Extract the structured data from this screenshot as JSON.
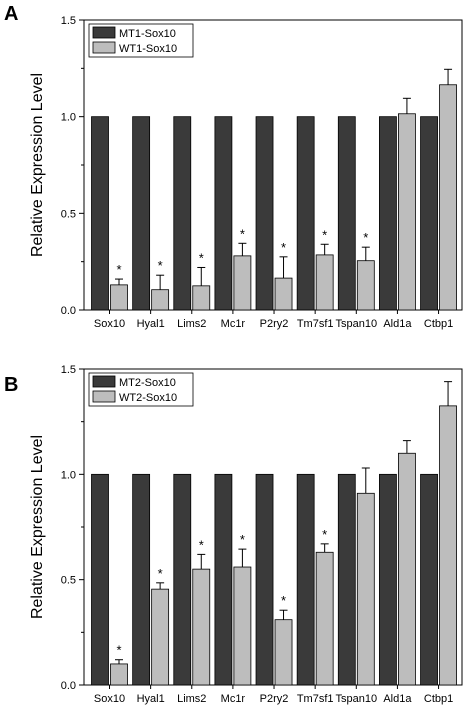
{
  "chart_data": [
    {
      "panel_label": "A",
      "type": "bar",
      "categories": [
        "Sox10",
        "Hyal1",
        "Lims2",
        "Mc1r",
        "P2ry2",
        "Tm7sf1",
        "Tspan10",
        "Ald1a",
        "Ctbp1"
      ],
      "ylabel": "Relative Expression Level",
      "ylim": [
        0,
        1.5
      ],
      "yticks": [
        "0.0",
        "0.5",
        "1.0",
        "1.5"
      ],
      "legend_position": "top-left",
      "series": [
        {
          "name": "MT1-Sox10",
          "color": "#3a3a3a",
          "values": [
            1.0,
            1.0,
            1.0,
            1.0,
            1.0,
            1.0,
            1.0,
            1.0,
            1.0
          ],
          "errors": [
            0,
            0,
            0,
            0,
            0,
            0,
            0,
            0,
            0
          ]
        },
        {
          "name": "WT1-Sox10",
          "color": "#bdbdbd",
          "values": [
            0.13,
            0.105,
            0.125,
            0.28,
            0.165,
            0.285,
            0.255,
            1.015,
            1.165
          ],
          "errors": [
            0.03,
            0.075,
            0.095,
            0.065,
            0.11,
            0.055,
            0.07,
            0.08,
            0.08
          ]
        }
      ],
      "significance": [
        "*",
        "*",
        "*",
        "*",
        "*",
        "*",
        "*",
        "",
        ""
      ]
    },
    {
      "panel_label": "B",
      "type": "bar",
      "categories": [
        "Sox10",
        "Hyal1",
        "Lims2",
        "Mc1r",
        "P2ry2",
        "Tm7sf1",
        "Tspan10",
        "Ald1a",
        "Ctbp1"
      ],
      "ylabel": "Relative Expression Level",
      "ylim": [
        0,
        1.5
      ],
      "yticks": [
        "0.0",
        "0.5",
        "1.0",
        "1.5"
      ],
      "legend_position": "top-left",
      "series": [
        {
          "name": "MT2-Sox10",
          "color": "#3a3a3a",
          "values": [
            1.0,
            1.0,
            1.0,
            1.0,
            1.0,
            1.0,
            1.0,
            1.0,
            1.0
          ],
          "errors": [
            0,
            0,
            0,
            0,
            0,
            0,
            0,
            0,
            0
          ]
        },
        {
          "name": "WT2-Sox10",
          "color": "#bdbdbd",
          "values": [
            0.1,
            0.455,
            0.55,
            0.56,
            0.31,
            0.63,
            0.91,
            1.1,
            1.325
          ],
          "errors": [
            0.02,
            0.03,
            0.07,
            0.085,
            0.045,
            0.04,
            0.12,
            0.06,
            0.115
          ]
        }
      ],
      "significance": [
        "*",
        "*",
        "*",
        "*",
        "*",
        "*",
        "",
        "",
        ""
      ]
    }
  ]
}
